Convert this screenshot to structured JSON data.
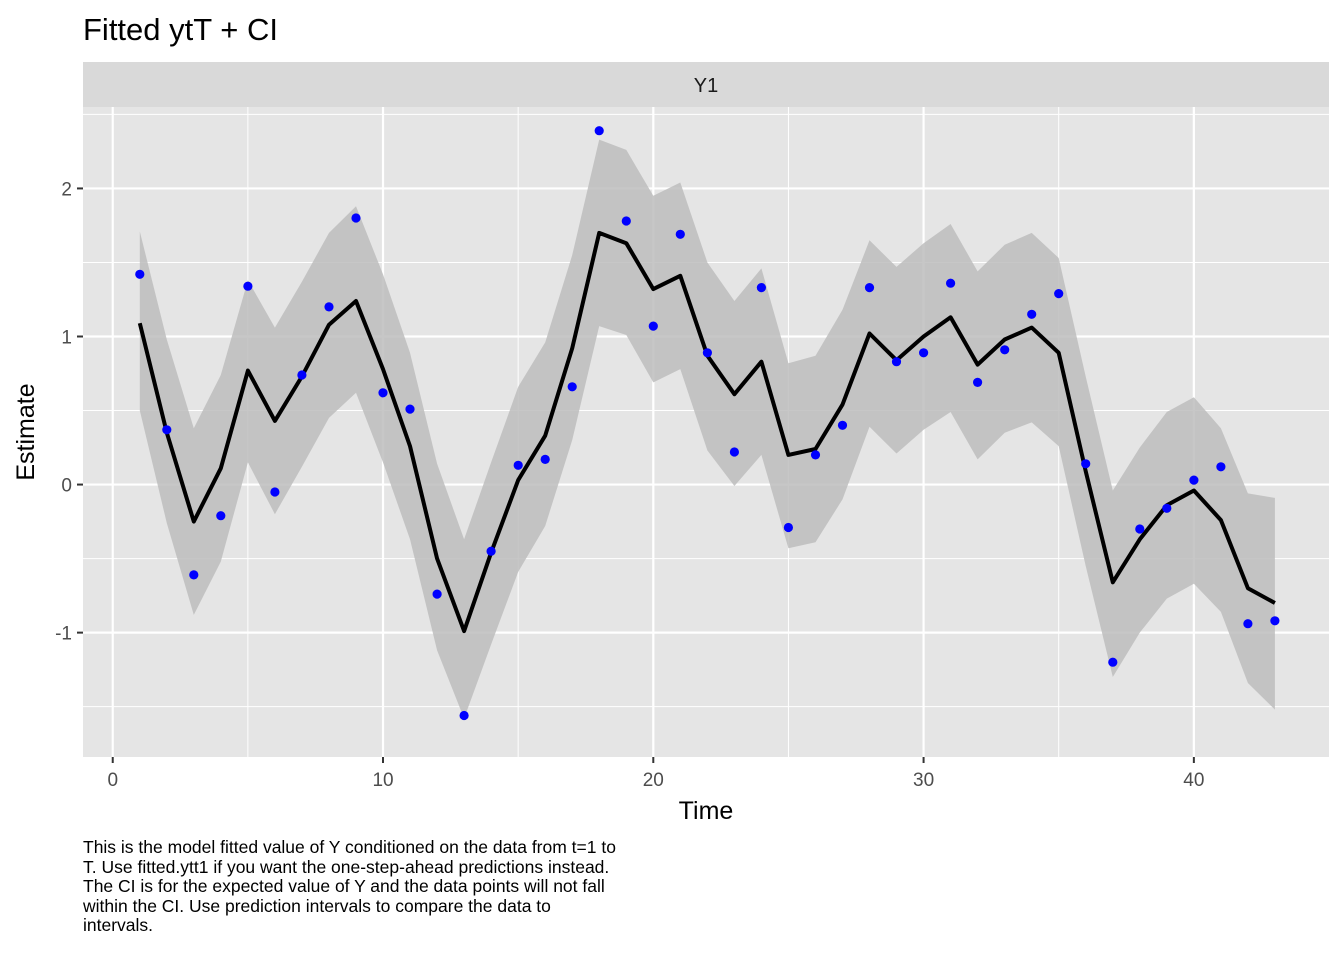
{
  "chart_data": {
    "type": "line",
    "title": "Fitted ytT + CI",
    "facet_label": "Y1",
    "xlabel": "Time",
    "ylabel": "Estimate",
    "xlim": [
      -1.1,
      45
    ],
    "ylim": [
      -1.84,
      2.55
    ],
    "x_ticks": [
      0,
      10,
      20,
      30,
      40
    ],
    "y_ticks": [
      -1,
      0,
      1,
      2
    ],
    "grid": true,
    "colors": {
      "panel_bg": "#e5e5e5",
      "strip_bg": "#d9d9d9",
      "grid": "#ffffff",
      "ribbon": "#bdbdbd",
      "line": "#000000",
      "points": "#0000ff"
    },
    "series": [
      {
        "kind": "ci-band",
        "x": [
          1,
          2,
          3,
          4,
          5,
          6,
          7,
          8,
          9,
          10,
          11,
          12,
          13,
          14,
          15,
          16,
          17,
          18,
          19,
          20,
          21,
          22,
          23,
          24,
          25,
          26,
          27,
          28,
          29,
          30,
          31,
          32,
          33,
          34,
          35,
          36,
          37,
          38,
          39,
          40,
          41,
          42,
          43
        ],
        "lower": [
          0.5,
          -0.26,
          -0.88,
          -0.52,
          0.15,
          -0.2,
          0.12,
          0.45,
          0.62,
          0.15,
          -0.37,
          -1.12,
          -1.58,
          -1.08,
          -0.59,
          -0.28,
          0.3,
          1.07,
          1.01,
          0.69,
          0.78,
          0.23,
          -0.01,
          0.2,
          -0.43,
          -0.39,
          -0.1,
          0.39,
          0.21,
          0.37,
          0.49,
          0.17,
          0.35,
          0.42,
          0.26,
          -0.55,
          -1.3,
          -1.0,
          -0.77,
          -0.67,
          -0.86,
          -1.34,
          -1.52
        ],
        "upper": [
          1.71,
          0.98,
          0.38,
          0.74,
          1.38,
          1.06,
          1.37,
          1.7,
          1.88,
          1.42,
          0.89,
          0.14,
          -0.37,
          0.15,
          0.66,
          0.96,
          1.55,
          2.33,
          2.26,
          1.95,
          2.04,
          1.5,
          1.24,
          1.46,
          0.82,
          0.87,
          1.18,
          1.65,
          1.47,
          1.63,
          1.76,
          1.44,
          1.62,
          1.7,
          1.53,
          0.73,
          -0.04,
          0.25,
          0.49,
          0.59,
          0.38,
          -0.06,
          -0.09
        ]
      },
      {
        "kind": "fitted-line",
        "x": [
          1,
          2,
          3,
          4,
          5,
          6,
          7,
          8,
          9,
          10,
          11,
          12,
          13,
          14,
          15,
          16,
          17,
          18,
          19,
          20,
          21,
          22,
          23,
          24,
          25,
          26,
          27,
          28,
          29,
          30,
          31,
          32,
          33,
          34,
          35,
          36,
          37,
          38,
          39,
          40,
          41,
          42,
          43
        ],
        "y": [
          1.09,
          0.35,
          -0.25,
          0.11,
          0.77,
          0.43,
          0.73,
          1.08,
          1.24,
          0.78,
          0.26,
          -0.5,
          -0.99,
          -0.46,
          0.03,
          0.33,
          0.92,
          1.7,
          1.63,
          1.32,
          1.41,
          0.87,
          0.61,
          0.83,
          0.2,
          0.24,
          0.54,
          1.02,
          0.84,
          1.0,
          1.13,
          0.81,
          0.98,
          1.06,
          0.89,
          0.09,
          -0.66,
          -0.37,
          -0.14,
          -0.04,
          -0.24,
          -0.7,
          -0.8
        ]
      },
      {
        "kind": "data-points",
        "x": [
          1,
          2,
          3,
          4,
          5,
          6,
          7,
          8,
          9,
          10,
          11,
          12,
          13,
          14,
          15,
          16,
          17,
          18,
          19,
          20,
          21,
          22,
          23,
          24,
          25,
          26,
          27,
          28,
          29,
          30,
          31,
          32,
          33,
          34,
          35,
          36,
          37,
          38,
          39,
          40,
          41,
          42,
          43
        ],
        "y": [
          1.42,
          0.37,
          -0.61,
          -0.21,
          1.34,
          -0.05,
          0.74,
          1.2,
          1.8,
          0.62,
          0.51,
          -0.74,
          -1.56,
          -0.45,
          0.13,
          0.17,
          0.66,
          2.39,
          1.78,
          1.07,
          1.69,
          0.89,
          0.22,
          1.33,
          -0.29,
          0.2,
          0.4,
          1.33,
          0.83,
          0.89,
          1.36,
          0.69,
          0.91,
          1.15,
          1.29,
          0.14,
          -1.2,
          -0.3,
          -0.16,
          0.03,
          0.12,
          -0.94,
          -0.92
        ]
      }
    ]
  },
  "caption": "This is the model fitted value of Y conditioned on the data from t=1 to\nT. Use fitted.ytt1 if you want the one-step-ahead predictions instead.\nThe CI is for the expected value of Y and the data points will not fall\nwithin the CI. Use prediction intervals to compare the data to\nintervals."
}
